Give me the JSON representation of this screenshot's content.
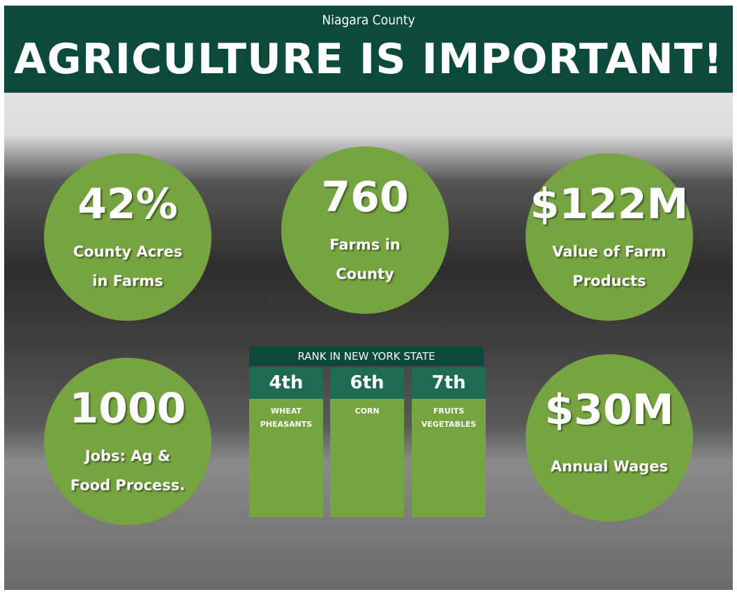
{
  "header": {
    "subtitle": "Niagara County",
    "title": "AGRICULTURE IS IMPORTANT!"
  },
  "stats": [
    {
      "value": "42%",
      "lines": [
        "County Acres",
        "in Farms"
      ]
    },
    {
      "value": "760",
      "lines": [
        "Farms in",
        "County"
      ]
    },
    {
      "value": "$122M",
      "lines": [
        "Value of Farm",
        "Products"
      ]
    },
    {
      "value": "1000",
      "lines": [
        "Jobs: Ag &",
        "Food Process."
      ]
    },
    {
      "value": "$30M",
      "lines": [
        "Annual Wages"
      ]
    }
  ],
  "rank": {
    "title": "RANK IN NEW YORK STATE",
    "items": [
      {
        "rank": "4th",
        "lines": [
          "WHEAT",
          "PHEASANTS"
        ]
      },
      {
        "rank": "6th",
        "lines": [
          "CORN"
        ]
      },
      {
        "rank": "7th",
        "lines": [
          "FRUITS",
          "VEGETABLES"
        ]
      }
    ]
  }
}
